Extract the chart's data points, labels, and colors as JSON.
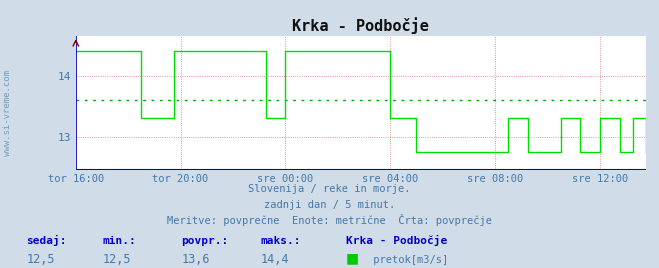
{
  "title": "Krka - Podbočje",
  "bg_color": "#d0dce8",
  "plot_bg_color": "#ffffff",
  "line_color": "#00dd00",
  "avg_line_color": "#00aa00",
  "axis_color": "#0000cc",
  "grid_color": "#cc6666",
  "ylabel_text": "www.si-vreme.com",
  "xticklabels": [
    "tor 16:00",
    "tor 20:00",
    "sre 00:00",
    "sre 04:00",
    "sre 08:00",
    "sre 12:00"
  ],
  "xtick_positions": [
    0,
    16,
    32,
    48,
    64,
    80
  ],
  "ylim_min": 12.45,
  "ylim_max": 14.65,
  "yticks": [
    13,
    14
  ],
  "avg_value": 13.6,
  "subtitle1": "Slovenija / reke in morje.",
  "subtitle2": "zadnji dan / 5 minut.",
  "subtitle3": "Meritve: povprečne  Enote: metrične  Črta: povprečje",
  "legend_label": " pretok[m3/s]",
  "legend_color": "#00cc00",
  "stat_labels": [
    "sedaj:",
    "min.:",
    "povpr.:",
    "maks.:"
  ],
  "stat_values": [
    "12,5",
    "12,5",
    "13,6",
    "14,4"
  ],
  "station_name": "Krka - Podbočje",
  "text_color": "#4477aa",
  "stat_label_color": "#0000cc",
  "watermark_color": "#7799bb",
  "data_x": [
    0,
    1,
    2,
    3,
    4,
    5,
    6,
    7,
    8,
    9,
    10,
    11,
    12,
    13,
    14,
    15,
    16,
    17,
    18,
    19,
    20,
    21,
    22,
    23,
    24,
    25,
    26,
    27,
    28,
    29,
    30,
    31,
    32,
    33,
    34,
    35,
    36,
    37,
    38,
    39,
    40,
    41,
    42,
    43,
    44,
    45,
    46,
    47,
    48,
    49,
    50,
    51,
    52,
    53,
    54,
    55,
    56,
    57,
    58,
    59,
    60,
    61,
    62,
    63,
    64,
    65,
    66,
    67,
    68,
    69,
    70,
    71,
    72,
    73,
    74,
    75,
    76,
    77,
    78,
    79,
    80,
    81,
    82,
    83,
    84,
    85,
    86,
    87
  ],
  "data_y": [
    14.4,
    14.4,
    14.4,
    14.4,
    14.4,
    14.4,
    14.4,
    14.4,
    14.4,
    14.4,
    13.3,
    13.3,
    13.3,
    13.3,
    13.3,
    14.4,
    14.4,
    14.4,
    14.4,
    14.4,
    14.4,
    14.4,
    14.4,
    14.4,
    14.4,
    14.4,
    14.4,
    14.4,
    14.4,
    13.3,
    13.3,
    13.3,
    14.4,
    14.4,
    14.4,
    14.4,
    14.4,
    14.4,
    14.4,
    14.4,
    14.4,
    14.4,
    14.4,
    14.4,
    14.4,
    14.4,
    14.4,
    14.4,
    13.3,
    13.3,
    13.3,
    13.3,
    12.75,
    12.75,
    12.75,
    12.75,
    12.75,
    12.75,
    12.75,
    12.75,
    12.75,
    12.75,
    12.75,
    12.75,
    12.75,
    12.75,
    13.3,
    13.3,
    13.3,
    12.75,
    12.75,
    12.75,
    12.75,
    12.75,
    13.3,
    13.3,
    13.3,
    12.75,
    12.75,
    12.75,
    13.3,
    13.3,
    13.3,
    12.75,
    12.75,
    13.3,
    13.3,
    12.75
  ]
}
